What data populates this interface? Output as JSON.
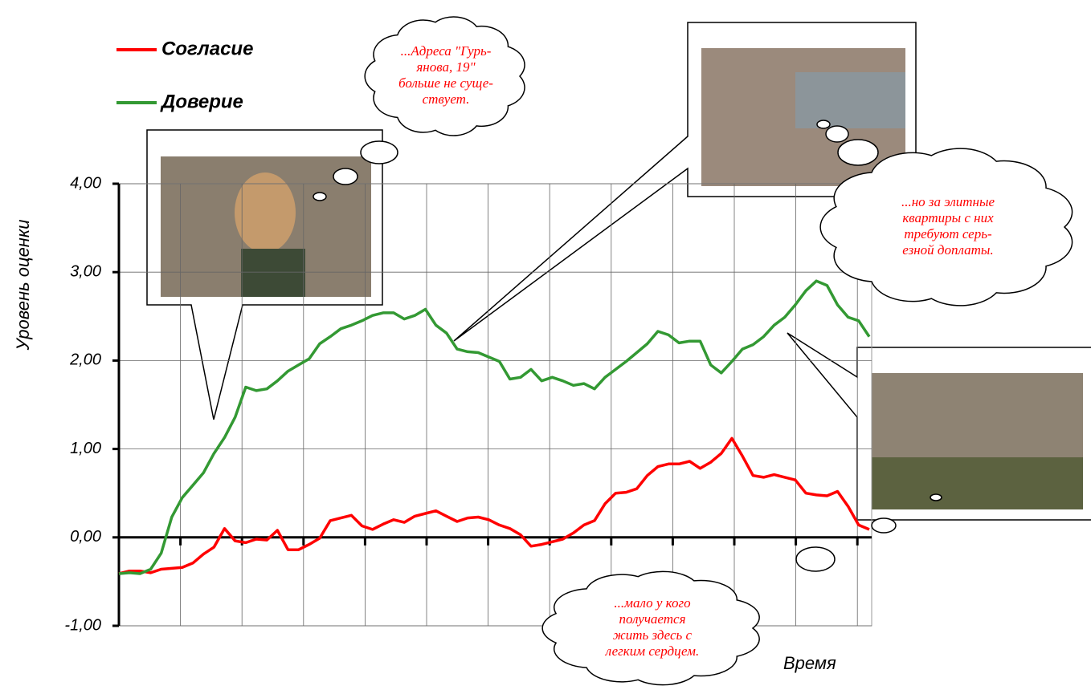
{
  "chart_data": {
    "type": "line",
    "y_axis_label": "Уровень оценки",
    "x_axis_label": "Время",
    "ylim": [
      -1,
      4
    ],
    "yticks": [
      {
        "value": -1,
        "label": "-1,00"
      },
      {
        "value": 0,
        "label": "0,00"
      },
      {
        "value": 1,
        "label": "1,00"
      },
      {
        "value": 2,
        "label": "2,00"
      },
      {
        "value": 3,
        "label": "3,00"
      },
      {
        "value": 4,
        "label": "4,00"
      }
    ],
    "grid": true,
    "legend": "top-left",
    "series": [
      {
        "name": "Согласие",
        "color": "#ff0000",
        "values": [
          -0.41,
          -0.38,
          -0.38,
          -0.4,
          -0.36,
          -0.35,
          -0.34,
          -0.29,
          -0.19,
          -0.11,
          0.1,
          -0.04,
          -0.06,
          -0.02,
          -0.03,
          0.08,
          -0.14,
          -0.14,
          -0.08,
          -0.01,
          0.19,
          0.22,
          0.25,
          0.13,
          0.09,
          0.15,
          0.2,
          0.17,
          0.24,
          0.27,
          0.3,
          0.24,
          0.18,
          0.22,
          0.23,
          0.2,
          0.14,
          0.1,
          0.03,
          -0.1,
          -0.08,
          -0.05,
          -0.02,
          0.05,
          0.14,
          0.19,
          0.38,
          0.5,
          0.51,
          0.55,
          0.7,
          0.8,
          0.83,
          0.83,
          0.86,
          0.78,
          0.85,
          0.95,
          1.12,
          0.92,
          0.7,
          0.68,
          0.71,
          0.68,
          0.65,
          0.5,
          0.48,
          0.47,
          0.52,
          0.35,
          0.14,
          0.09
        ]
      },
      {
        "name": "Доверие",
        "color": "#339933",
        "values": [
          -0.41,
          -0.4,
          -0.41,
          -0.36,
          -0.18,
          0.23,
          0.45,
          0.59,
          0.73,
          0.95,
          1.13,
          1.36,
          1.7,
          1.66,
          1.68,
          1.77,
          1.88,
          1.95,
          2.02,
          2.19,
          2.27,
          2.36,
          2.4,
          2.45,
          2.51,
          2.54,
          2.54,
          2.47,
          2.51,
          2.58,
          2.4,
          2.31,
          2.13,
          2.1,
          2.09,
          2.04,
          1.99,
          1.79,
          1.81,
          1.9,
          1.77,
          1.81,
          1.77,
          1.72,
          1.74,
          1.68,
          1.81,
          1.9,
          1.99,
          2.09,
          2.19,
          2.33,
          2.29,
          2.2,
          2.22,
          2.22,
          1.95,
          1.86,
          1.99,
          2.13,
          2.18,
          2.27,
          2.4,
          2.49,
          2.63,
          2.79,
          2.9,
          2.85,
          2.63,
          2.49,
          2.45,
          2.27
        ]
      }
    ],
    "annotations": [
      {
        "lines": [
          "...Адреса \"Гурь-",
          "янова, 19\"",
          "больше не суще-",
          "ствует."
        ]
      },
      {
        "lines": [
          "...но за элитные",
          "квартиры с них",
          "требуют серь-",
          "езной доплаты."
        ]
      },
      {
        "lines": [
          "...мало у кого",
          "получается",
          "жить здесь с",
          "легким сердцем."
        ]
      }
    ]
  }
}
